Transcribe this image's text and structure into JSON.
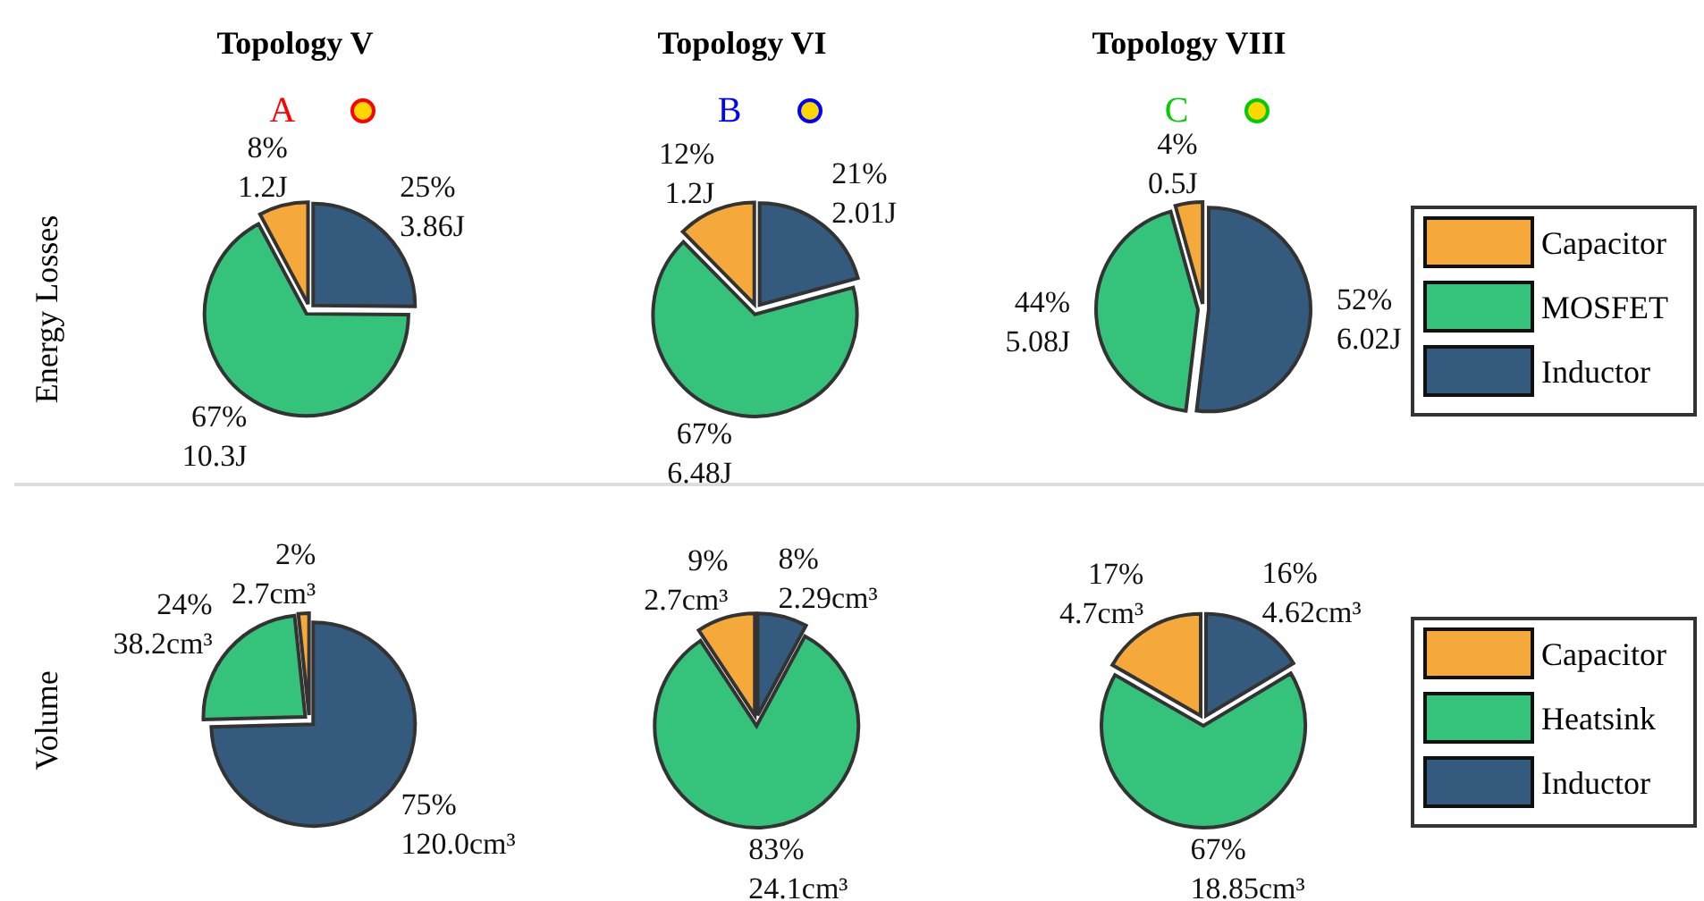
{
  "chart_data": [
    {
      "type": "pie",
      "title": "Topology V",
      "subtitle": "A",
      "ylabel": "Energy Losses",
      "categories": [
        null,
        null,
        null
      ],
      "values": [
        1.2,
        10.3,
        3.86
      ],
      "colors": [
        "#f4a93a",
        "#35c27a",
        "#345a7d"
      ],
      "value_labels": [
        "8%\n1.2J",
        "67%\n10.3J",
        "25%\n3.86J"
      ]
    },
    {
      "type": "pie",
      "title": "Topology VI",
      "subtitle": "B",
      "categories": [
        null,
        null,
        null
      ],
      "values": [
        1.2,
        6.48,
        2.01
      ],
      "colors": [
        "#f4a93a",
        "#35c27a",
        "#345a7d"
      ],
      "value_labels": [
        "12%\n1.2J",
        "67%\n6.48J",
        "21%\n2.01J"
      ]
    },
    {
      "type": "pie",
      "title": "Topology VIII",
      "subtitle": "C",
      "categories": [
        "Capacitor",
        "MOSFET",
        "Inductor"
      ],
      "values": [
        0.5,
        5.08,
        6.02
      ],
      "colors": [
        "#f4a93a",
        "#35c27a",
        "#345a7d"
      ],
      "value_labels": [
        "4%\n0.5J",
        "44%\n5.08J",
        "52%\n6.02J"
      ],
      "legend": "right"
    },
    {
      "type": "pie",
      "ylabel": "Volume",
      "categories": [
        null,
        null,
        null
      ],
      "values": [
        2.7,
        38.2,
        120.0
      ],
      "colors": [
        "#f4a93a",
        "#35c27a",
        "#345a7d"
      ],
      "value_labels": [
        "2%\n2.7cm³",
        "24%\n38.2cm³",
        "75%\n120.0cm³"
      ]
    },
    {
      "type": "pie",
      "categories": [
        null,
        null,
        null
      ],
      "values": [
        2.7,
        24.1,
        2.29
      ],
      "colors": [
        "#f4a93a",
        "#35c27a",
        "#345a7d"
      ],
      "value_labels": [
        "9%\n2.7cm³",
        "83%\n24.1cm³",
        "8%\n2.29cm³"
      ]
    },
    {
      "type": "pie",
      "categories": [
        "Capacitor",
        "Heatsink",
        "Inductor"
      ],
      "values": [
        4.7,
        18.85,
        4.62
      ],
      "colors": [
        "#f4a93a",
        "#35c27a",
        "#345a7d"
      ],
      "value_labels": [
        "17%\n4.7cm³",
        "67%\n18.85cm³",
        "16%\n4.62cm³"
      ],
      "legend": "right"
    }
  ]
}
